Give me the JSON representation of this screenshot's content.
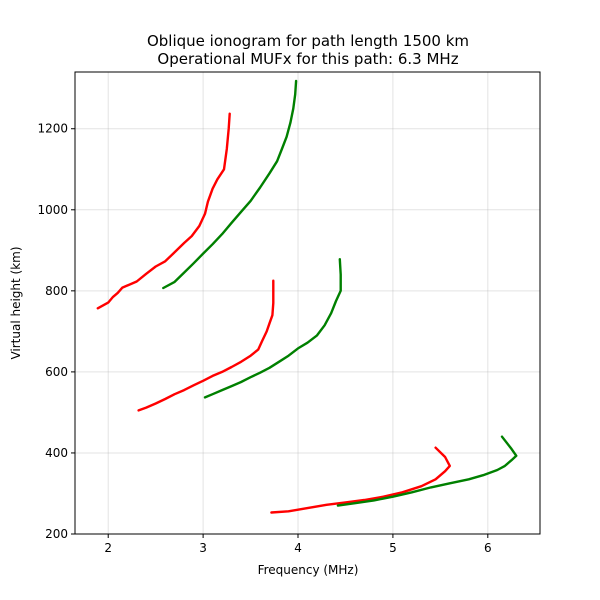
{
  "chart_data": {
    "type": "line",
    "title": "Oblique ionogram for path length 1500 km",
    "subtitle": "Operational MUFx for this path: 6.3 MHz",
    "xlabel": "Frequency (MHz)",
    "ylabel": "Virtual height (km)",
    "xlim": [
      1.65,
      6.55
    ],
    "ylim": [
      200,
      1340
    ],
    "xticks": [
      2,
      3,
      4,
      5,
      6
    ],
    "yticks": [
      200,
      400,
      600,
      800,
      1000,
      1200
    ],
    "grid": true,
    "legend": "none",
    "colors": {
      "red": "#ff0000",
      "green": "#008000"
    },
    "series": [
      {
        "color": "#ff0000",
        "points": [
          [
            1.89,
            757
          ],
          [
            2.0,
            771
          ],
          [
            2.05,
            785
          ],
          [
            2.1,
            795
          ],
          [
            2.15,
            808
          ],
          [
            2.3,
            823
          ],
          [
            2.4,
            842
          ],
          [
            2.5,
            860
          ],
          [
            2.6,
            873
          ],
          [
            2.7,
            895
          ],
          [
            2.8,
            918
          ],
          [
            2.88,
            935
          ],
          [
            2.96,
            960
          ],
          [
            3.02,
            990
          ],
          [
            3.05,
            1020
          ],
          [
            3.1,
            1052
          ],
          [
            3.15,
            1075
          ],
          [
            3.22,
            1100
          ],
          [
            3.25,
            1150
          ],
          [
            3.27,
            1200
          ],
          [
            3.28,
            1237
          ]
        ]
      },
      {
        "color": "#008000",
        "points": [
          [
            2.58,
            807
          ],
          [
            2.7,
            822
          ],
          [
            2.8,
            845
          ],
          [
            2.9,
            868
          ],
          [
            3.0,
            892
          ],
          [
            3.1,
            915
          ],
          [
            3.2,
            940
          ],
          [
            3.3,
            968
          ],
          [
            3.4,
            995
          ],
          [
            3.5,
            1022
          ],
          [
            3.6,
            1055
          ],
          [
            3.7,
            1090
          ],
          [
            3.78,
            1120
          ],
          [
            3.83,
            1150
          ],
          [
            3.88,
            1180
          ],
          [
            3.92,
            1215
          ],
          [
            3.95,
            1250
          ],
          [
            3.97,
            1285
          ],
          [
            3.98,
            1318
          ]
        ]
      },
      {
        "color": "#ff0000",
        "points": [
          [
            2.32,
            505
          ],
          [
            2.4,
            512
          ],
          [
            2.5,
            522
          ],
          [
            2.6,
            533
          ],
          [
            2.7,
            545
          ],
          [
            2.8,
            555
          ],
          [
            2.9,
            567
          ],
          [
            3.0,
            578
          ],
          [
            3.1,
            590
          ],
          [
            3.2,
            600
          ],
          [
            3.3,
            612
          ],
          [
            3.4,
            625
          ],
          [
            3.5,
            640
          ],
          [
            3.58,
            655
          ],
          [
            3.62,
            675
          ],
          [
            3.67,
            700
          ],
          [
            3.7,
            720
          ],
          [
            3.73,
            740
          ],
          [
            3.74,
            770
          ],
          [
            3.74,
            800
          ],
          [
            3.74,
            825
          ]
        ]
      },
      {
        "color": "#008000",
        "points": [
          [
            3.02,
            537
          ],
          [
            3.1,
            545
          ],
          [
            3.2,
            555
          ],
          [
            3.3,
            565
          ],
          [
            3.4,
            575
          ],
          [
            3.5,
            587
          ],
          [
            3.6,
            598
          ],
          [
            3.7,
            610
          ],
          [
            3.8,
            625
          ],
          [
            3.9,
            640
          ],
          [
            4.0,
            658
          ],
          [
            4.1,
            672
          ],
          [
            4.2,
            690
          ],
          [
            4.28,
            715
          ],
          [
            4.35,
            745
          ],
          [
            4.4,
            775
          ],
          [
            4.45,
            800
          ],
          [
            4.45,
            840
          ],
          [
            4.44,
            878
          ]
        ]
      },
      {
        "color": "#ff0000",
        "points": [
          [
            3.72,
            253
          ],
          [
            3.9,
            256
          ],
          [
            4.1,
            264
          ],
          [
            4.3,
            272
          ],
          [
            4.5,
            278
          ],
          [
            4.7,
            284
          ],
          [
            4.9,
            292
          ],
          [
            5.1,
            303
          ],
          [
            5.3,
            318
          ],
          [
            5.45,
            335
          ],
          [
            5.55,
            355
          ],
          [
            5.6,
            368
          ],
          [
            5.55,
            390
          ],
          [
            5.45,
            413
          ]
        ]
      },
      {
        "color": "#008000",
        "points": [
          [
            4.42,
            270
          ],
          [
            4.6,
            276
          ],
          [
            4.8,
            283
          ],
          [
            5.0,
            292
          ],
          [
            5.2,
            303
          ],
          [
            5.4,
            315
          ],
          [
            5.6,
            325
          ],
          [
            5.8,
            335
          ],
          [
            5.95,
            345
          ],
          [
            6.1,
            358
          ],
          [
            6.18,
            368
          ],
          [
            6.25,
            382
          ],
          [
            6.3,
            393
          ],
          [
            6.25,
            410
          ],
          [
            6.15,
            440
          ]
        ]
      }
    ]
  }
}
